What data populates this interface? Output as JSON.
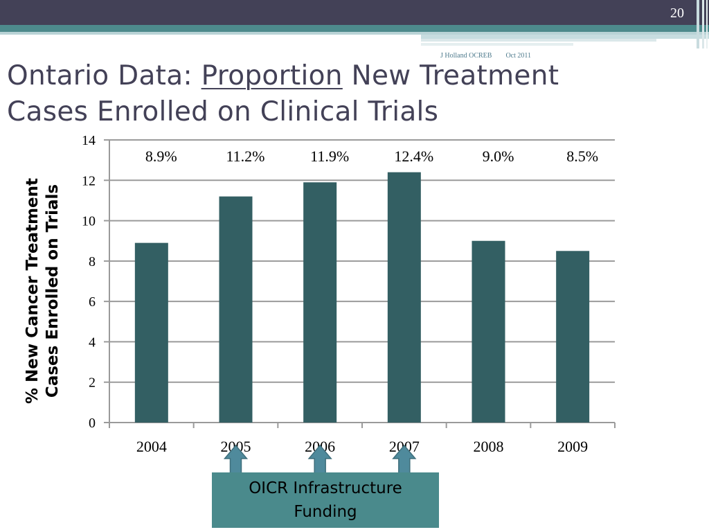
{
  "slide": {
    "page_number": "20",
    "author": "J Holland OCREB",
    "date": "Oct 2011",
    "title_before": "Ontario Data: ",
    "title_underlined": "Proportion",
    "title_after": " New Treatment Cases Enrolled on Clinical Trials"
  },
  "chart_data": {
    "type": "bar",
    "categories": [
      "2004",
      "2005",
      "2006",
      "2007",
      "2008",
      "2009"
    ],
    "values": [
      8.9,
      11.2,
      11.9,
      12.4,
      9.0,
      8.5
    ],
    "data_labels": [
      "8.9%",
      "11.2%",
      "11.9%",
      "12.4%",
      "9.0%",
      "8.5%"
    ],
    "ylabel": "% New Cancer Treatment Cases Enrolled on Trials",
    "yticks": [
      "0",
      "2",
      "4",
      "6",
      "8",
      "10",
      "12",
      "14"
    ],
    "ylim": [
      0,
      14
    ],
    "grid": true,
    "bar_color": "#335f63"
  },
  "annotation": {
    "label": "OICR Infrastructure Funding",
    "arrow_categories": [
      "2005",
      "2006",
      "2007"
    ],
    "box_color": "#4a8a8c"
  }
}
